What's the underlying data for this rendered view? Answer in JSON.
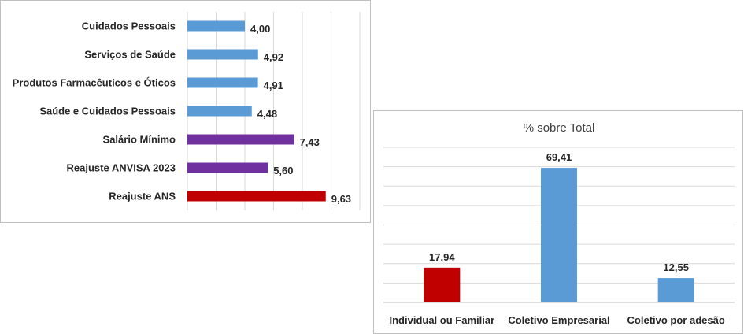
{
  "chart_data": [
    {
      "type": "bar",
      "orientation": "horizontal",
      "title": "",
      "xlabel": "",
      "ylabel": "",
      "xlim": [
        0,
        12
      ],
      "grid": true,
      "legend": "none",
      "categories": [
        "Cuidados Pessoais",
        "Serviços de Saúde",
        "Produtos Farmacêuticos e Óticos",
        "Saúde e Cuidados Pessoais",
        "Salário Mínimo",
        "Reajuste ANVISA 2023",
        "Reajuste ANS"
      ],
      "values": [
        4.0,
        4.92,
        4.91,
        4.48,
        7.43,
        5.6,
        9.63
      ],
      "value_labels": [
        "4,00",
        "4,92",
        "4,91",
        "4,48",
        "7,43",
        "5,60",
        "9,63"
      ],
      "colors": [
        "#5b9bd5",
        "#5b9bd5",
        "#5b9bd5",
        "#5b9bd5",
        "#7030a0",
        "#7030a0",
        "#c00000"
      ]
    },
    {
      "type": "bar",
      "orientation": "vertical",
      "title": "% sobre Total",
      "xlabel": "",
      "ylabel": "",
      "ylim": [
        0,
        80
      ],
      "grid": true,
      "legend": "none",
      "categories": [
        "Individual ou Familiar",
        "Coletivo Empresarial",
        "Coletivo por adesão"
      ],
      "values": [
        17.94,
        69.41,
        12.55
      ],
      "value_labels": [
        "17,94",
        "69,41",
        "12,55"
      ],
      "colors": [
        "#c00000",
        "#5b9bd5",
        "#5b9bd5"
      ]
    }
  ]
}
